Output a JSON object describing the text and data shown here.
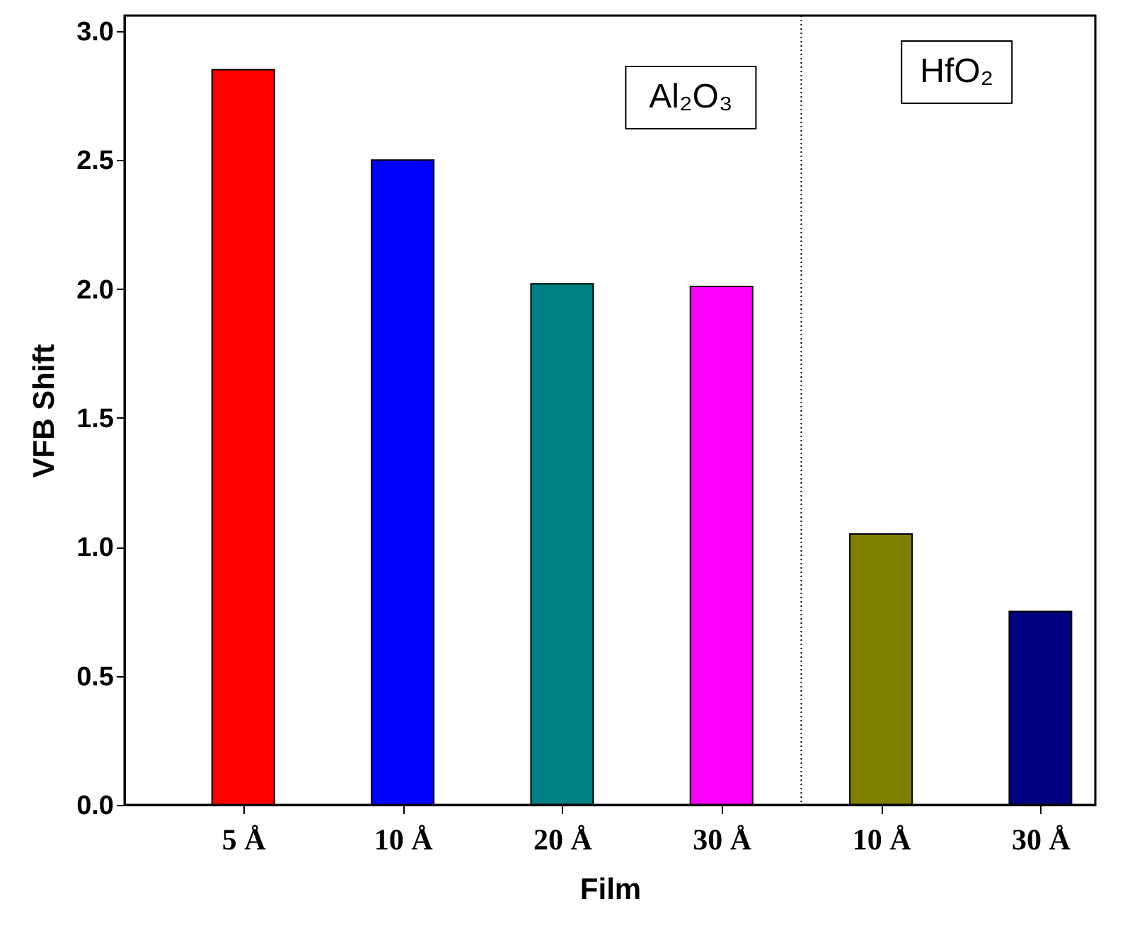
{
  "chart_data": {
    "type": "bar",
    "xlabel": "Film",
    "ylabel": "VFB Shift",
    "categories": [
      "5 Å",
      "10 Å",
      "20 Å",
      "30 Å",
      "10 Å",
      "30 Å"
    ],
    "values": [
      2.85,
      2.5,
      2.02,
      2.01,
      1.05,
      0.75
    ],
    "colors": [
      "#ff0000",
      "#0000ff",
      "#008080",
      "#ff00ff",
      "#808000",
      "#000080"
    ],
    "ylim": [
      0,
      3.06
    ],
    "yticks": [
      {
        "value": 0,
        "label": "0.0"
      },
      {
        "value": 0.5,
        "label": "0.5"
      },
      {
        "value": 1,
        "label": "1.0"
      },
      {
        "value": 1.5,
        "label": "1.5"
      },
      {
        "value": 2,
        "label": "2.0"
      },
      {
        "value": 2.5,
        "label": "2.5"
      },
      {
        "value": 3,
        "label": "3.0"
      }
    ],
    "annotations": [
      "Al₂O₃",
      "HfO₂"
    ],
    "grid": false
  }
}
